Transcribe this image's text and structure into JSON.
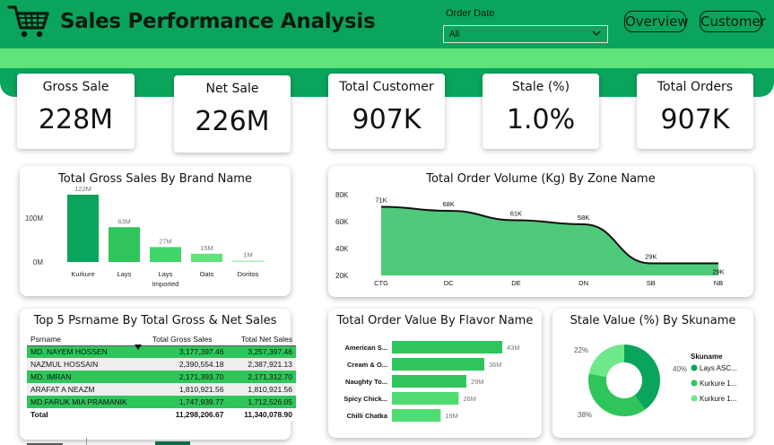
{
  "header": {
    "title": "Sales Performance Analysis",
    "order_date_label": "Order Date",
    "order_date_value": "All",
    "nav": [
      "Overview",
      "Customer"
    ]
  },
  "kpis": [
    {
      "label": "Gross Sale",
      "value": "228M"
    },
    {
      "label": "Net Sale",
      "value": "226M"
    },
    {
      "label": "Total Customer",
      "value": "907K"
    },
    {
      "label": "Stale (%)",
      "value": "1.0%"
    },
    {
      "label": "Total Orders",
      "value": "907K"
    }
  ],
  "brand_chart": {
    "title": "Total Gross Sales By Brand Name",
    "y_ticks": [
      "100M",
      "0M"
    ],
    "categories": [
      "Kurkure",
      "Lays",
      "Lays Imported",
      "Oats",
      "Doritos"
    ],
    "category_lines": [
      [
        "Kurkure"
      ],
      [
        "Lays"
      ],
      [
        "Lays",
        "Imported"
      ],
      [
        "Oats"
      ],
      [
        "Doritos"
      ]
    ],
    "value_labels": [
      "122M",
      "63M",
      "27M",
      "15M",
      "1M"
    ],
    "values": [
      122,
      63,
      27,
      15,
      1
    ],
    "colors": [
      "#0aa45c",
      "#2fc55a",
      "#3fd66a",
      "#5fe37b",
      "#a8f0b8"
    ]
  },
  "zone_chart": {
    "title": "Total Order Volume (Kg) By Zone Name",
    "y_ticks": [
      "80K",
      "60K",
      "40K",
      "20K"
    ],
    "categories": [
      "CTG",
      "DC",
      "DE",
      "DN",
      "SB",
      "NB"
    ],
    "value_labels": [
      "71K",
      "68K",
      "61K",
      "58K",
      "29K",
      "29K"
    ],
    "values": [
      71,
      68,
      61,
      58,
      29,
      29
    ]
  },
  "table": {
    "title": "Top 5 Psrname By Total Gross & Net Sales",
    "columns": [
      "Psrname",
      "Total Gross Sales",
      "Total Net Sales"
    ],
    "rows": [
      [
        "MD. NAYEM HOSSEN",
        "3,177,397.46",
        "3,257,397.46"
      ],
      [
        "NAZMUL HOSSAIN",
        "2,390,554.18",
        "2,387,921.13"
      ],
      [
        "MD. IMRAN",
        "2,171,393.70",
        "2,171,312.70"
      ],
      [
        "ARAFAT A NEAZM",
        "1,810,921.56",
        "1,810,921.56"
      ],
      [
        "MD.FARUK MIA PRAMANIK",
        "1,747,939.77",
        "1,712,526.05"
      ]
    ],
    "total": [
      "Total",
      "11,298,206.67",
      "11,340,078.90"
    ]
  },
  "flavor_chart": {
    "title": "Total Order Value By Flavor Name",
    "categories": [
      "American S...",
      "Cream & O...",
      "Naughty To...",
      "Spicy Chick...",
      "Chilli Chatka"
    ],
    "value_labels": [
      "43M",
      "36M",
      "29M",
      "26M",
      "19M"
    ],
    "values": [
      43,
      36,
      29,
      26,
      19
    ]
  },
  "stale_chart": {
    "title": "Stale Value (%) By Skuname",
    "legend_title": "Skuname",
    "legend": [
      "Lays ASC...",
      "Kurkure 1...",
      "Kurkure 1..."
    ],
    "slice_labels": [
      "40%",
      "38%",
      "22%"
    ],
    "values": [
      40,
      38,
      22
    ],
    "colors": [
      "#0aa45c",
      "#2fc55a",
      "#6fe88a"
    ]
  }
}
